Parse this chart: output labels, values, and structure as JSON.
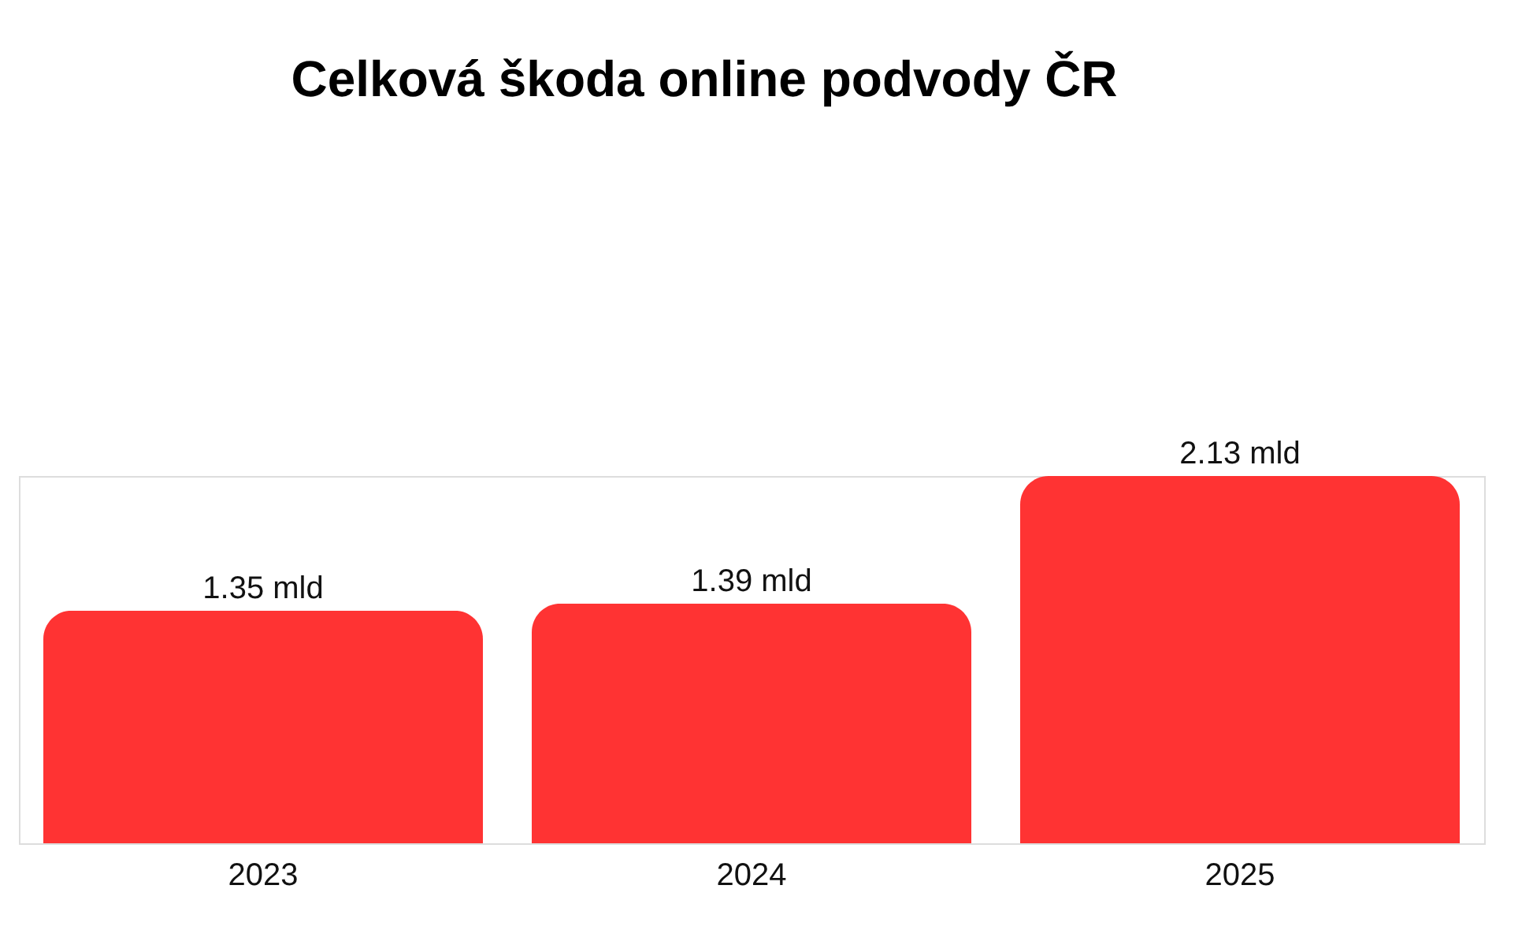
{
  "chart_data": {
    "type": "bar",
    "title": "Celková škoda online podvody ČR",
    "categories": [
      "2023",
      "2024",
      "2025"
    ],
    "values": [
      1.35,
      1.39,
      2.13
    ],
    "value_labels": [
      "1.35 mld",
      "1.39 mld",
      "2.13 mld"
    ],
    "color": "#ff3333",
    "grid": false,
    "tick_labels": "x"
  }
}
